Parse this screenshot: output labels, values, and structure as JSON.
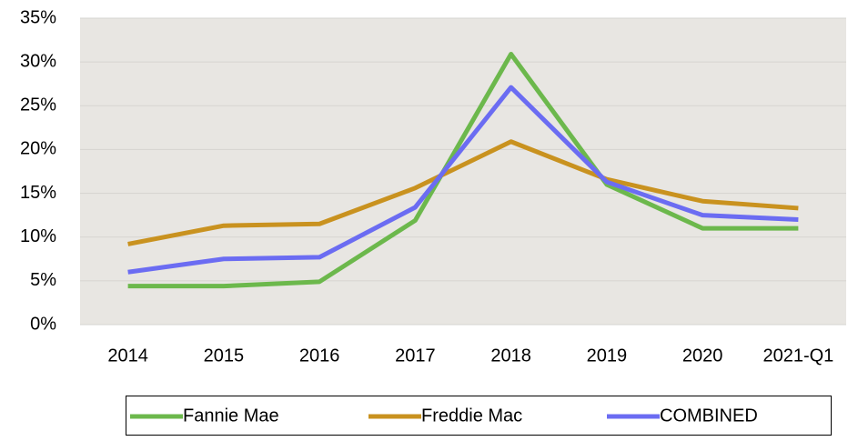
{
  "chart_data": {
    "type": "line",
    "categories": [
      "2014",
      "2015",
      "2016",
      "2017",
      "2018",
      "2019",
      "2020",
      "2021-Q1"
    ],
    "series": [
      {
        "name": "Fannie Mae",
        "color": "#6cb84c",
        "values": [
          4.4,
          4.4,
          4.9,
          11.9,
          30.9,
          16.0,
          11.0,
          11.0
        ]
      },
      {
        "name": "Freddie Mac",
        "color": "#c9921f",
        "values": [
          9.2,
          11.3,
          11.5,
          15.6,
          20.9,
          16.6,
          14.1,
          13.3
        ]
      },
      {
        "name": "COMBINED",
        "color": "#6b6cf2",
        "values": [
          6.0,
          7.5,
          7.7,
          13.4,
          27.1,
          16.3,
          12.5,
          12.0
        ]
      }
    ],
    "ylim": [
      0,
      35
    ],
    "yticks": [
      {
        "value": 0,
        "label": "0%"
      },
      {
        "value": 5,
        "label": "5%"
      },
      {
        "value": 10,
        "label": "10%"
      },
      {
        "value": 15,
        "label": "15%"
      },
      {
        "value": 20,
        "label": "20%"
      },
      {
        "value": 25,
        "label": "25%"
      },
      {
        "value": 30,
        "label": "30%"
      },
      {
        "value": 35,
        "label": "35%"
      }
    ],
    "grid": true,
    "legend": "bottom"
  }
}
